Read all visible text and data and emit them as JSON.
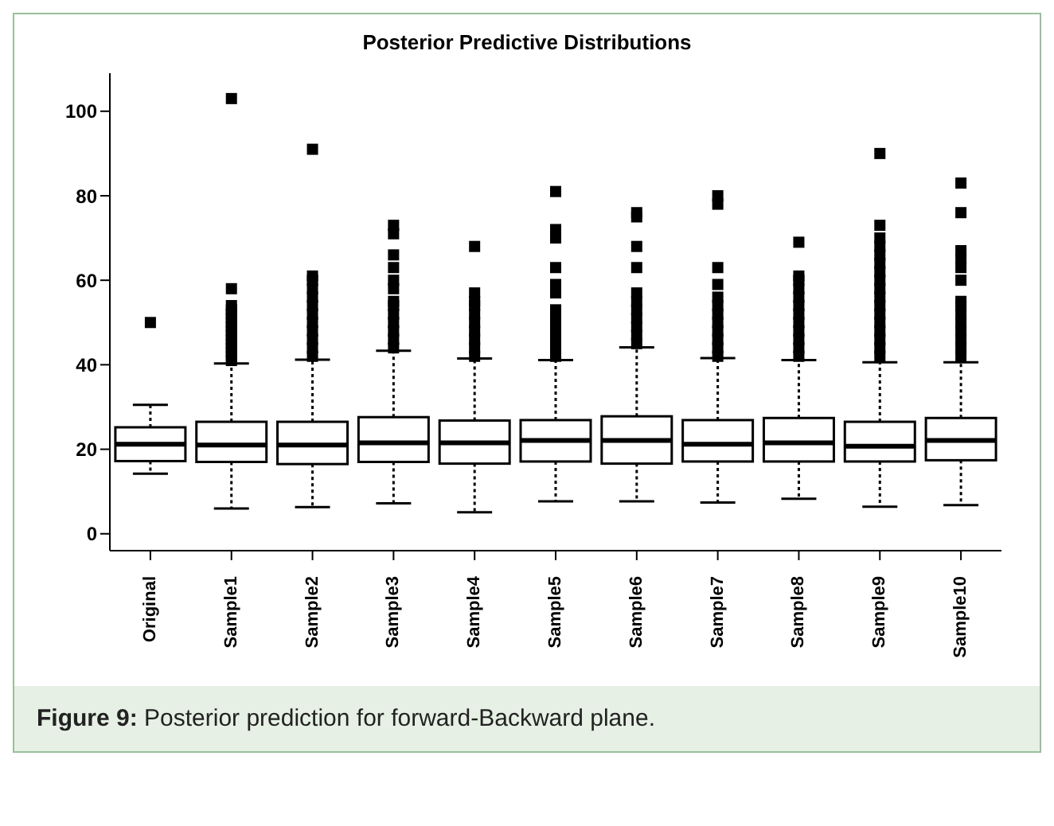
{
  "chart_data": {
    "type": "box",
    "title": "Posterior Predictive Distributions",
    "categories": [
      "Original",
      "Sample1",
      "Sample2",
      "Sample3",
      "Sample4",
      "Sample5",
      "Sample6",
      "Sample7",
      "Sample8",
      "Sample9",
      "Sample10"
    ],
    "boxes": [
      {
        "low": 14.2,
        "q1": 17.2,
        "median": 21.2,
        "q3": 25.2,
        "high": 30.5,
        "outliers": [
          50
        ]
      },
      {
        "low": 6,
        "q1": 17,
        "median": 21,
        "q3": 26.5,
        "high": 40.3,
        "outliers": [
          41,
          42,
          43,
          44,
          45,
          46,
          47,
          48,
          49,
          50,
          51,
          52,
          53,
          54,
          58,
          103
        ]
      },
      {
        "low": 6.3,
        "q1": 16.5,
        "median": 21,
        "q3": 26.5,
        "high": 41.2,
        "outliers": [
          42,
          44,
          46,
          48,
          50,
          52,
          54,
          56,
          58,
          60,
          61,
          91
        ]
      },
      {
        "low": 7.2,
        "q1": 17,
        "median": 21.5,
        "q3": 27.6,
        "high": 43.3,
        "outliers": [
          44,
          46,
          48,
          50,
          52,
          54,
          55,
          58,
          60,
          63,
          66,
          71,
          73
        ]
      },
      {
        "low": 5.1,
        "q1": 16.6,
        "median": 21.5,
        "q3": 26.8,
        "high": 41.5,
        "outliers": [
          42,
          44,
          46,
          48,
          50,
          52,
          54,
          55,
          57,
          68
        ]
      },
      {
        "low": 7.7,
        "q1": 17.1,
        "median": 22.1,
        "q3": 26.9,
        "high": 41.1,
        "outliers": [
          42,
          44,
          46,
          48,
          50,
          52,
          53,
          57,
          59,
          63,
          70,
          72,
          81
        ]
      },
      {
        "low": 7.7,
        "q1": 16.6,
        "median": 22.1,
        "q3": 27.8,
        "high": 44.1,
        "outliers": [
          45,
          47,
          49,
          51,
          53,
          55,
          57,
          63,
          68,
          75,
          76
        ]
      },
      {
        "low": 7.4,
        "q1": 17.1,
        "median": 21.2,
        "q3": 26.9,
        "high": 41.6,
        "outliers": [
          42,
          44,
          46,
          48,
          50,
          52,
          54,
          56,
          59,
          63,
          78,
          80
        ]
      },
      {
        "low": 8.3,
        "q1": 17.1,
        "median": 21.5,
        "q3": 27.4,
        "high": 41.1,
        "outliers": [
          42,
          44,
          46,
          48,
          50,
          52,
          54,
          56,
          58,
          60,
          61,
          69
        ]
      },
      {
        "low": 6.4,
        "q1": 17.1,
        "median": 20.7,
        "q3": 26.5,
        "high": 40.6,
        "outliers": [
          42,
          44,
          46,
          48,
          50,
          52,
          54,
          56,
          58,
          60,
          62,
          64,
          66,
          68,
          70,
          73,
          90
        ]
      },
      {
        "low": 6.8,
        "q1": 17.4,
        "median": 22.1,
        "q3": 27.4,
        "high": 40.6,
        "outliers": [
          42,
          44,
          46,
          48,
          50,
          52,
          54,
          55,
          60,
          63,
          65,
          67,
          76,
          83
        ]
      }
    ],
    "ylim": [
      -4,
      109
    ],
    "yticks": [
      0,
      20,
      40,
      60,
      80,
      100
    ],
    "grid": false,
    "annotations": [
      "Figure 9: Posterior prediction for forward-Backward plane."
    ]
  }
}
